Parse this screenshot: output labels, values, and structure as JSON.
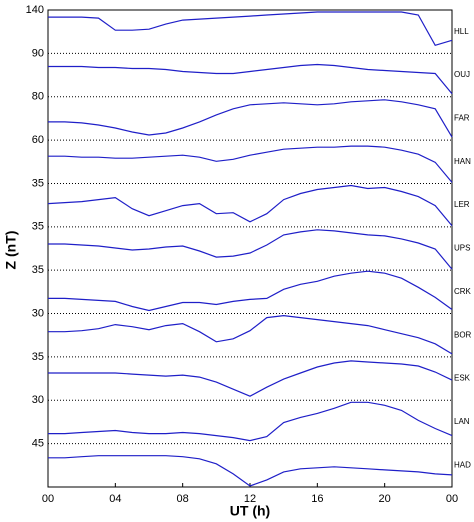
{
  "chart_data": {
    "type": "line",
    "xlabel": "UT (h)",
    "ylabel": "Z (nT)",
    "xlim": [
      0,
      24
    ],
    "xticks": [
      {
        "value": 0,
        "label": "00"
      },
      {
        "value": 4,
        "label": "04"
      },
      {
        "value": 8,
        "label": "08"
      },
      12,
      16,
      20,
      {
        "value": 24,
        "label": "00"
      }
    ],
    "x": [
      0,
      1,
      2,
      3,
      4,
      5,
      6,
      7,
      8,
      9,
      10,
      11,
      12,
      13,
      14,
      15,
      16,
      17,
      18,
      19,
      20,
      21,
      22,
      23,
      24
    ],
    "color": "#1f1fc8",
    "series": [
      {
        "name": "HLL",
        "ytick": 140,
        "ylim": [
          97,
          140
        ],
        "values": [
          133,
          133,
          133,
          132,
          120,
          120,
          121,
          126,
          130,
          131,
          132,
          133,
          134,
          135,
          136,
          137,
          138,
          138,
          138,
          138,
          138,
          138,
          135,
          105,
          110
        ]
      },
      {
        "name": "OUJ",
        "ytick": 90,
        "ylim": [
          47,
          90
        ],
        "values": [
          77,
          77,
          77,
          76,
          76,
          75,
          75,
          74,
          72,
          71,
          70,
          70,
          72,
          74,
          76,
          78,
          79,
          78,
          76,
          74,
          73,
          72,
          71,
          70,
          50
        ]
      },
      {
        "name": "FAR",
        "ytick": 80,
        "ylim": [
          37,
          80
        ],
        "values": [
          55,
          55,
          54,
          52,
          49,
          45,
          42,
          44,
          49,
          55,
          62,
          68,
          72,
          73,
          74,
          73,
          72,
          73,
          75,
          76,
          77,
          75,
          72,
          68,
          40
        ]
      },
      {
        "name": "HAN",
        "ytick": 60,
        "ylim": [
          17,
          60
        ],
        "values": [
          44,
          44,
          43,
          43,
          42,
          42,
          43,
          44,
          45,
          43,
          39,
          41,
          45,
          48,
          51,
          52,
          53,
          53,
          54,
          54,
          53,
          50,
          46,
          38,
          18
        ]
      },
      {
        "name": "LER",
        "ytick": 35,
        "ylim": [
          -8,
          35
        ],
        "values": [
          15,
          16,
          17,
          19,
          21,
          10,
          3,
          8,
          13,
          15,
          5,
          6,
          -3,
          5,
          19,
          25,
          29,
          31,
          33,
          30,
          31,
          27,
          22,
          13,
          -7
        ]
      },
      {
        "name": "UPS",
        "ytick": 35,
        "ylim": [
          -8,
          35
        ],
        "values": [
          18,
          18,
          17,
          16,
          14,
          12,
          13,
          15,
          16,
          11,
          5,
          6,
          9,
          17,
          27,
          30,
          32,
          31,
          29,
          27,
          26,
          23,
          19,
          13,
          -7
        ]
      },
      {
        "name": "CRK",
        "ytick": 35,
        "ylim": [
          -8,
          35
        ],
        "values": [
          7,
          7,
          6,
          5,
          4,
          -1,
          -5,
          -1,
          3,
          3,
          1,
          4,
          6,
          7,
          16,
          21,
          24,
          29,
          32,
          34,
          32,
          27,
          18,
          8,
          -4
        ]
      },
      {
        "name": "BOR",
        "ytick": 30,
        "ylim": [
          -13,
          30
        ],
        "values": [
          12,
          12,
          13,
          15,
          19,
          17,
          14,
          18,
          20,
          12,
          2,
          5,
          13,
          26,
          28,
          26,
          24,
          22,
          20,
          18,
          14,
          10,
          6,
          0,
          -10
        ]
      },
      {
        "name": "ESK",
        "ytick": 35,
        "ylim": [
          -8,
          35
        ],
        "values": [
          19,
          19,
          19,
          19,
          19,
          18,
          17,
          16,
          17,
          15,
          10,
          3,
          -4,
          5,
          13,
          19,
          25,
          29,
          31,
          30,
          29,
          28,
          26,
          20,
          12
        ]
      },
      {
        "name": "LAN",
        "ytick": 30,
        "ylim": [
          -13,
          30
        ],
        "values": [
          -3,
          -3,
          -2,
          -1,
          0,
          -2,
          -3,
          -3,
          -2,
          -3,
          -5,
          -7,
          -10,
          -6,
          8,
          13,
          17,
          22,
          28,
          28,
          25,
          20,
          10,
          2,
          -5
        ]
      },
      {
        "name": "HAD",
        "ytick": 45,
        "ylim": [
          2,
          45
        ],
        "values": [
          31,
          31,
          32,
          33,
          33,
          33,
          33,
          33,
          32,
          30,
          25,
          15,
          3,
          9,
          17,
          20,
          21,
          22,
          21,
          20,
          19,
          18,
          17,
          15,
          14
        ]
      }
    ]
  }
}
